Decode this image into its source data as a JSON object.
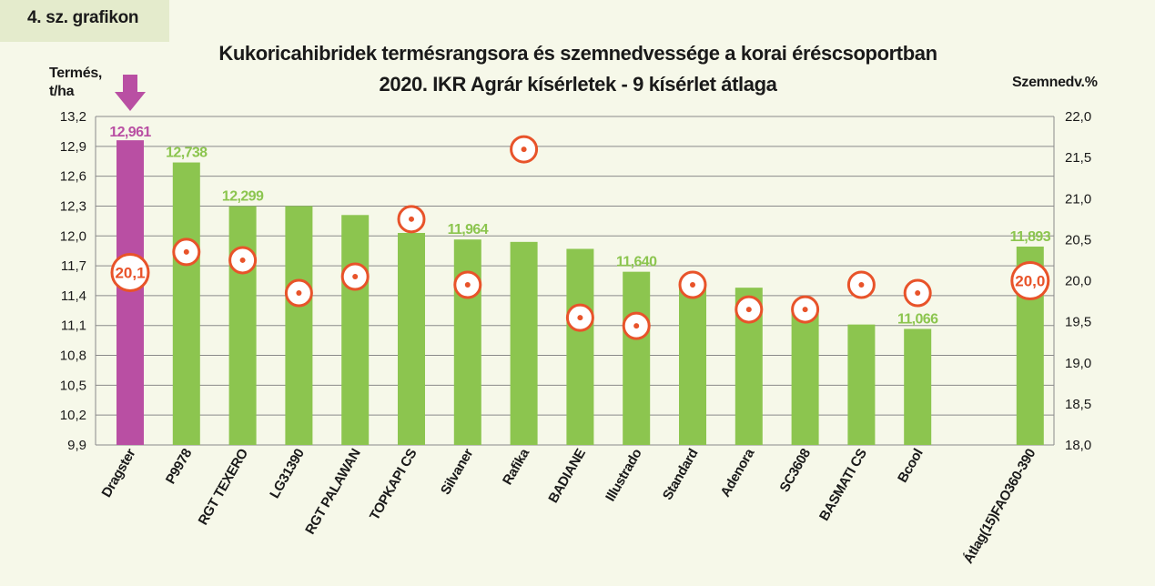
{
  "tag_label": "4. sz. grafikon",
  "chart_data": {
    "type": "bar",
    "title_line1": "Kukoricahibridek termésrangsora és szemnedvessége a korai éréscsoportban",
    "title_line2": "2020. IKR Agrár kísérletek - 9 kísérlet átlaga",
    "ylabel_line1": "Termés,",
    "ylabel_line2": "t/ha",
    "y2label": "Szemnedv.%",
    "ylim": [
      9.9,
      13.2
    ],
    "y2lim": [
      18.0,
      22.0
    ],
    "y_ticks": [
      "13,2",
      "12,9",
      "12,6",
      "12,3",
      "12,0",
      "11,7",
      "11,4",
      "11,1",
      "10,8",
      "10,5",
      "10,2",
      "9,9"
    ],
    "y2_ticks": [
      "22,0",
      "21,5",
      "21,0",
      "20,5",
      "20,0",
      "19,5",
      "19,0",
      "18,5",
      "18,0"
    ],
    "grid": true,
    "colors": {
      "highlight": "#b94fa3",
      "bar": "#8cc54f",
      "marker": "#e8532a",
      "highlight_label": "#b94fa3"
    },
    "categories": [
      "Dragster",
      "P9978",
      "RGT TEXERO",
      "LG31390",
      "RGT PALAWAN",
      "TOPKAPI CS",
      "Silvaner",
      "Rafika",
      "BADIANE",
      "Illustrado",
      "Standard",
      "Adenora",
      "SC3608",
      "BASMATI CS",
      "Bcool",
      "",
      "Átlag(15)FAO360-390"
    ],
    "series": [
      {
        "axis": "left",
        "values": [
          12.961,
          12.738,
          12.299,
          12.3,
          12.21,
          12.03,
          11.964,
          11.94,
          11.87,
          11.64,
          11.52,
          11.48,
          11.27,
          11.11,
          11.066,
          null,
          11.893
        ]
      },
      {
        "axis": "right",
        "values": [
          20.1,
          20.35,
          20.25,
          19.85,
          20.05,
          20.75,
          19.95,
          21.6,
          19.55,
          19.45,
          19.95,
          19.65,
          19.65,
          19.95,
          19.85,
          null,
          20.0
        ]
      }
    ],
    "data_labels": [
      "12,961",
      "12,738",
      "12,299",
      "",
      "",
      "",
      "11,964",
      "",
      "",
      "11,640",
      "",
      "",
      "",
      "",
      "11,066",
      "",
      "11,893"
    ],
    "moisture_labels": [
      "20,1",
      "",
      "",
      "",
      "",
      "",
      "",
      "",
      "",
      "",
      "",
      "",
      "",
      "",
      "",
      "",
      "20,0"
    ]
  }
}
